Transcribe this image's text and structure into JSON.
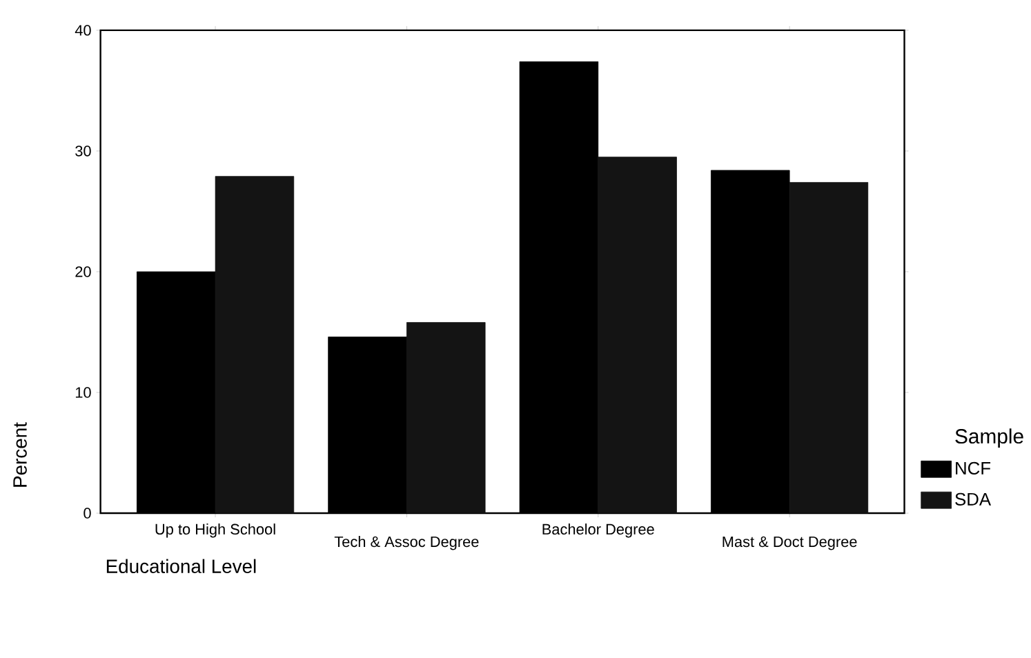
{
  "chart_data": {
    "type": "bar",
    "xlabel": "Educational Level",
    "ylabel": "Percent",
    "legend_title": "Sample",
    "categories": [
      "Up to High School",
      "Tech & Assoc Degree",
      "Bachelor Degree",
      "Mast & Doct Degree"
    ],
    "series": [
      {
        "name": "NCF",
        "color": "#000000",
        "values": [
          20.0,
          14.6,
          37.4,
          28.4
        ]
      },
      {
        "name": "SDA",
        "color": "#141414",
        "values": [
          27.9,
          15.8,
          29.5,
          27.4
        ]
      }
    ],
    "ylim": [
      0,
      40
    ],
    "yticks": [
      0,
      10,
      20,
      30,
      40
    ],
    "legend": "right",
    "grid": false
  }
}
